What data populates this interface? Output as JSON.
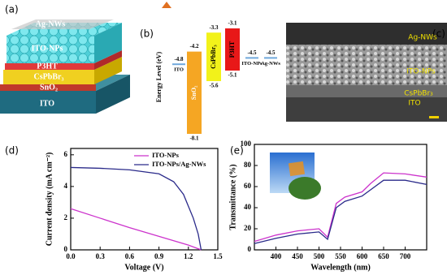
{
  "panels": {
    "a": {
      "label": "(a)",
      "layers": [
        "Ag-NWs",
        "ITO-NPs",
        "P3HT",
        "CsPbBr₃",
        "SnO₂",
        "ITO"
      ]
    },
    "b": {
      "label": "(b)",
      "axis_label": "Energy Level (eV)",
      "lines": [
        {
          "name": "ITO",
          "value": -4.8
        },
        {
          "name": "ITO-NPs",
          "value": -4.5
        },
        {
          "name": "Ag-NWs",
          "value": -4.5
        }
      ],
      "bands": [
        {
          "name": "SnO₂",
          "top": -4.2,
          "bottom": -8.1,
          "color": "#f5a623"
        },
        {
          "name": "CsPbBr₃",
          "top": -3.3,
          "bottom": -5.6,
          "color": "#f2f21a"
        },
        {
          "name": "P3HT",
          "top": -3.1,
          "bottom": -5.1,
          "color": "#e81818"
        }
      ]
    },
    "c": {
      "label": "(c)",
      "layers": [
        "Ag-NWs",
        "ITO-NPs",
        "CsPbBr₃",
        "ITO"
      ]
    }
  },
  "chart_data": [
    {
      "type": "line",
      "label": "(d)",
      "x_label": "Voltage (V)",
      "y_label": "Current density (mA cm⁻²)",
      "xlim": [
        0,
        1.5
      ],
      "xticks": [
        {
          "value": 0,
          "label": "0.0"
        },
        0.3,
        0.6,
        0.9,
        1.2,
        1.5
      ],
      "ylim": [
        0,
        6.4
      ],
      "yticks": [
        0,
        2,
        4,
        6
      ],
      "legend": "top-right",
      "series": [
        {
          "name": "ITO-NPs",
          "color": "#cc33cc",
          "x": [
            0,
            0.3,
            0.6,
            0.9,
            1.2,
            1.33
          ],
          "values": [
            2.6,
            2.0,
            1.4,
            0.85,
            0.3,
            0
          ]
        },
        {
          "name": "ITO-NPs/Ag-NWs",
          "color": "#2a2a8a",
          "x": [
            0,
            0.3,
            0.6,
            0.9,
            1.05,
            1.15,
            1.25,
            1.3,
            1.33
          ],
          "values": [
            5.2,
            5.15,
            5.05,
            4.8,
            4.3,
            3.5,
            2.0,
            1.0,
            0
          ]
        }
      ]
    },
    {
      "type": "line",
      "label": "(e)",
      "x_label": "Wavelength (nm)",
      "y_label": "Transmittance (%)",
      "xlim": [
        350,
        750
      ],
      "xticks": [
        400,
        450,
        500,
        550,
        600,
        650,
        700
      ],
      "ylim": [
        0,
        100
      ],
      "yticks": [
        0,
        20,
        40,
        60,
        80,
        100
      ],
      "series": [
        {
          "color": "#cc33cc",
          "x": [
            350,
            400,
            450,
            500,
            520,
            540,
            560,
            600,
            620,
            650,
            700,
            750
          ],
          "values": [
            8,
            14,
            18,
            20,
            12,
            44,
            50,
            55,
            63,
            73,
            72,
            69
          ]
        },
        {
          "color": "#2a2a8a",
          "x": [
            350,
            400,
            450,
            500,
            520,
            540,
            560,
            600,
            620,
            650,
            700,
            750
          ],
          "values": [
            6,
            11,
            15,
            17,
            10,
            40,
            46,
            51,
            57,
            66,
            66,
            62
          ]
        }
      ]
    }
  ]
}
